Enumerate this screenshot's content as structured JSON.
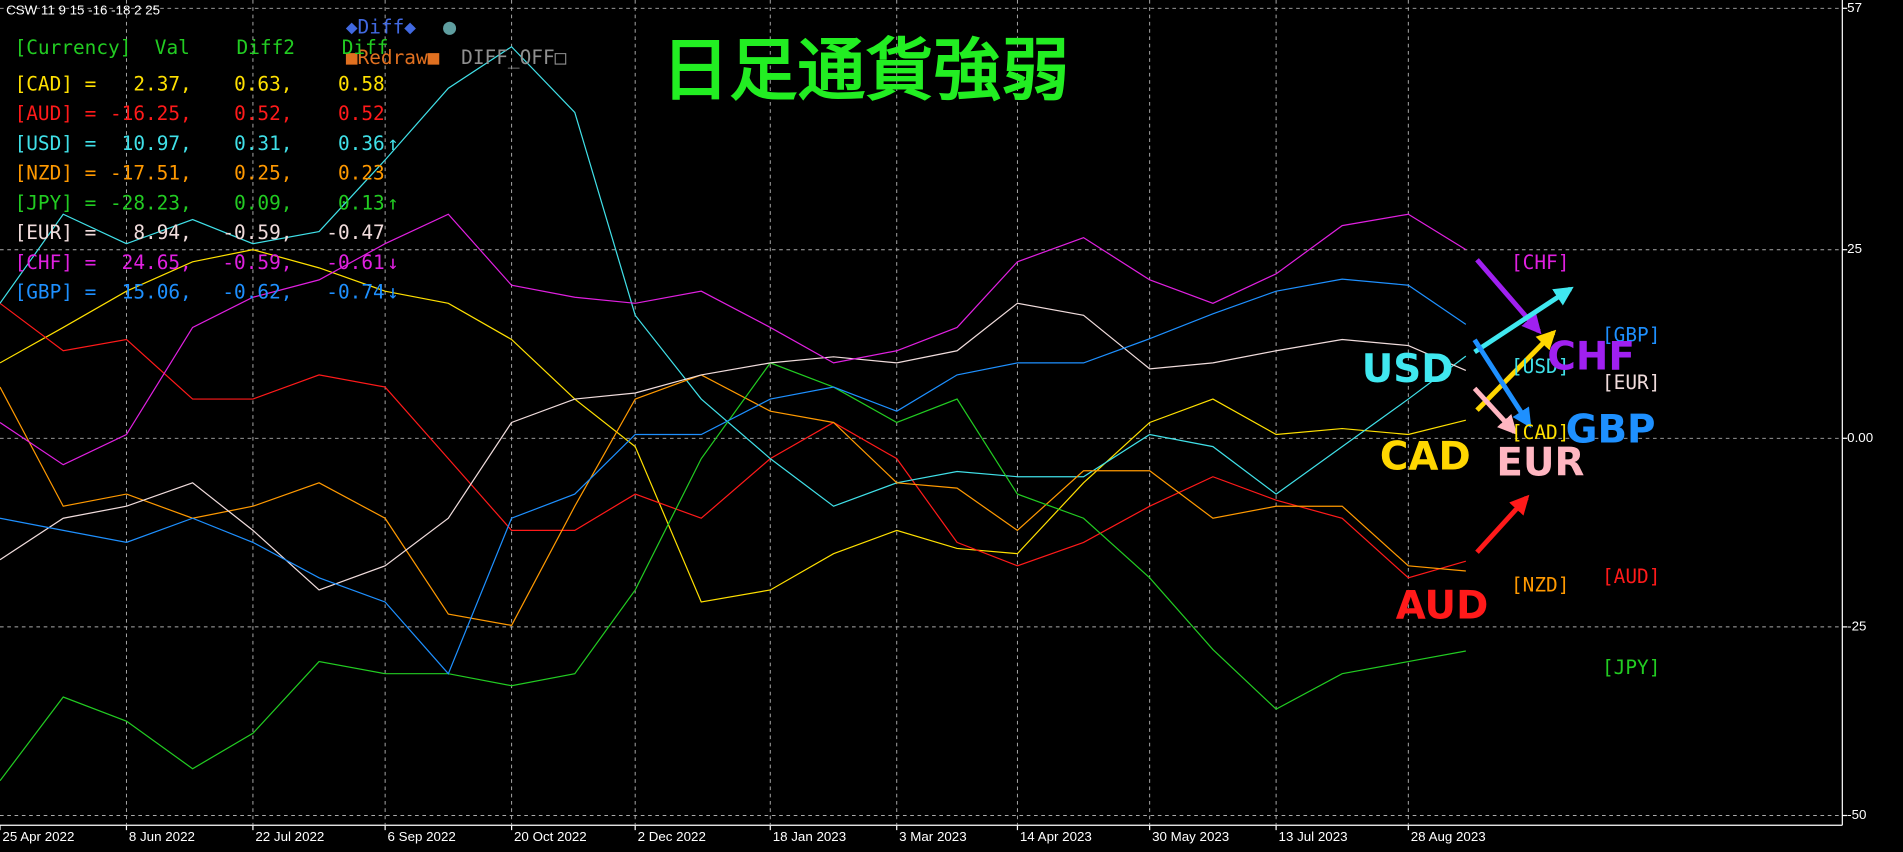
{
  "panel": {
    "info": "CSW 11 9 15 -16 -18 2 25",
    "header": "[Currency]  Val    Diff2    Diff",
    "rows": [
      {
        "color": "#ffe000",
        "cells": [
          "[CAD] =",
          "2.37,",
          "0.63,",
          "0.58"
        ]
      },
      {
        "color": "#ff1a1a",
        "cells": [
          "[AUD] =",
          "-16.25,",
          "0.52,",
          "0.52"
        ]
      },
      {
        "color": "#40e0e8",
        "cells": [
          "[USD] =",
          "10.97,",
          "0.31,",
          "0.36"
        ],
        "arrow": "↑"
      },
      {
        "color": "#ff9900",
        "cells": [
          "[NZD] =",
          "-17.51,",
          "0.25,",
          "0.23"
        ]
      },
      {
        "color": "#22cc22",
        "cells": [
          "[JPY] =",
          "-28.23,",
          "0.09,",
          "0.13"
        ],
        "arrow": "↑"
      },
      {
        "color": "#f0dcdc",
        "cells": [
          "[EUR] =",
          "8.94,",
          "-0.59,",
          "-0.47"
        ]
      },
      {
        "color": "#e020e0",
        "cells": [
          "[CHF] =",
          "24.65,",
          "-0.59,",
          "-0.61"
        ],
        "arrow": "↓"
      },
      {
        "color": "#1e90ff",
        "cells": [
          "[GBP] =",
          "15.06,",
          "-0.62,",
          "-0.74"
        ],
        "arrow": "↓"
      }
    ],
    "buttons": {
      "diff": "◆Diff◆",
      "dot": "●",
      "redraw": "■Redraw■",
      "diff_off": "DIFF_OFF□"
    }
  },
  "chart_data": {
    "type": "line",
    "title": "日足通貨強弱",
    "x": [
      "25 Apr 2022",
      "17 May 2022",
      "8 Jun 2022",
      "1 Jul 2022",
      "22 Jul 2022",
      "14 Aug 2022",
      "6 Sep 2022",
      "28 Sep 2022",
      "20 Oct 2022",
      "11 Nov 2022",
      "2 Dec 2022",
      "25 Dec 2022",
      "18 Jan 2023",
      "9 Feb 2023",
      "3 Mar 2023",
      "24 Mar 2023",
      "14 Apr 2023",
      "7 May 2023",
      "30 May 2023",
      "21 Jun 2023",
      "13 Jul 2023",
      "5 Aug 2023",
      "28 Aug 2023",
      "17 Sep 2023"
    ],
    "xlim": [
      "25 Apr 2022",
      "26 Jan 2024"
    ],
    "xticks": [
      "25 Apr 2022",
      "8 Jun 2022",
      "22 Jul 2022",
      "6 Sep 2022",
      "20 Oct 2022",
      "2 Dec 2022",
      "18 Jan 2023",
      "3 Mar 2023",
      "14 Apr 2023",
      "30 May 2023",
      "13 Jul 2023",
      "28 Aug 2023"
    ],
    "ylim": [
      -51.3,
      58.1
    ],
    "yticks": [
      57,
      25,
      {
        "value": 0,
        "label": "0.00"
      },
      -25,
      -50
    ],
    "grid": true,
    "series": [
      {
        "name": "[CAD]",
        "color": "#ffe000",
        "values": [
          10.0,
          14.7,
          19.5,
          23.4,
          25.0,
          22.6,
          19.5,
          17.9,
          13.1,
          5.2,
          -1.1,
          -21.7,
          -20.1,
          -15.3,
          -12.2,
          -14.6,
          -15.3,
          -5.9,
          2.1,
          5.2,
          0.5,
          1.3,
          0.5,
          2.4
        ]
      },
      {
        "name": "[AUD]",
        "color": "#ff1a1a",
        "values": [
          17.9,
          11.6,
          13.1,
          5.2,
          5.2,
          8.4,
          6.8,
          -2.7,
          -12.2,
          -12.2,
          -7.4,
          -10.6,
          -2.7,
          2.1,
          -2.7,
          -13.8,
          -16.9,
          -13.8,
          -9.0,
          -5.1,
          -8.2,
          -10.6,
          -18.5,
          -16.3
        ]
      },
      {
        "name": "[USD]",
        "color": "#40e0e8",
        "values": [
          17.9,
          29.7,
          25.8,
          29.0,
          25.8,
          27.4,
          36.9,
          46.4,
          51.9,
          43.2,
          16.3,
          5.2,
          -2.7,
          -9.0,
          -5.9,
          -4.4,
          -5.1,
          -5.1,
          0.5,
          -1.1,
          -7.4,
          -1.1,
          5.2,
          10.9
        ]
      },
      {
        "name": "[NZD]",
        "color": "#ff9900",
        "values": [
          6.8,
          -9.0,
          -7.4,
          -10.6,
          -9.0,
          -5.9,
          -10.6,
          -23.3,
          -24.8,
          -9.0,
          5.2,
          8.4,
          3.6,
          2.1,
          -5.9,
          -6.6,
          -12.2,
          -4.3,
          -4.3,
          -10.6,
          -9.0,
          -9.0,
          -16.9,
          -17.6
        ]
      },
      {
        "name": "[JPY]",
        "color": "#22cc22",
        "values": [
          -45.4,
          -34.3,
          -37.5,
          -43.8,
          -39.1,
          -29.6,
          -31.2,
          -31.2,
          -32.8,
          -31.2,
          -20.1,
          -2.7,
          10.0,
          6.8,
          2.1,
          5.2,
          -7.4,
          -10.6,
          -18.5,
          -28.0,
          -35.9,
          -31.2,
          -29.6,
          -28.2
        ]
      },
      {
        "name": "[EUR]",
        "color": "#f0dcdc",
        "values": [
          -16.1,
          -10.6,
          -9.0,
          -5.9,
          -12.2,
          -20.1,
          -16.9,
          -10.6,
          2.1,
          5.2,
          6.0,
          8.4,
          10.0,
          10.8,
          10.0,
          11.6,
          17.9,
          16.3,
          9.2,
          10.0,
          11.6,
          13.1,
          12.3,
          9.0
        ]
      },
      {
        "name": "[CHF]",
        "color": "#e020e0",
        "values": [
          2.1,
          -3.5,
          0.5,
          14.7,
          18.7,
          21.0,
          25.8,
          29.7,
          20.3,
          18.7,
          17.9,
          19.5,
          14.7,
          10.0,
          11.6,
          14.7,
          23.4,
          26.6,
          21.0,
          17.9,
          21.8,
          28.2,
          29.7,
          25.0
        ]
      },
      {
        "name": "[GBP]",
        "color": "#1e90ff",
        "values": [
          -10.6,
          -12.2,
          -13.8,
          -10.6,
          -13.8,
          -18.5,
          -21.7,
          -31.2,
          -10.6,
          -7.4,
          0.5,
          0.5,
          5.2,
          6.8,
          3.6,
          8.4,
          10.0,
          10.0,
          13.2,
          16.5,
          19.5,
          21.1,
          20.3,
          15.1
        ]
      }
    ],
    "annotations": [
      {
        "text": "USD",
        "color": "#40e8f0"
      },
      {
        "text": "CHF",
        "color": "#a020f0"
      },
      {
        "text": "CAD",
        "color": "#ffd700"
      },
      {
        "text": "GBP",
        "color": "#1e90ff"
      },
      {
        "text": "EUR",
        "color": "#ffb6c1"
      },
      {
        "text": "AUD",
        "color": "#ff1a1a"
      }
    ]
  }
}
